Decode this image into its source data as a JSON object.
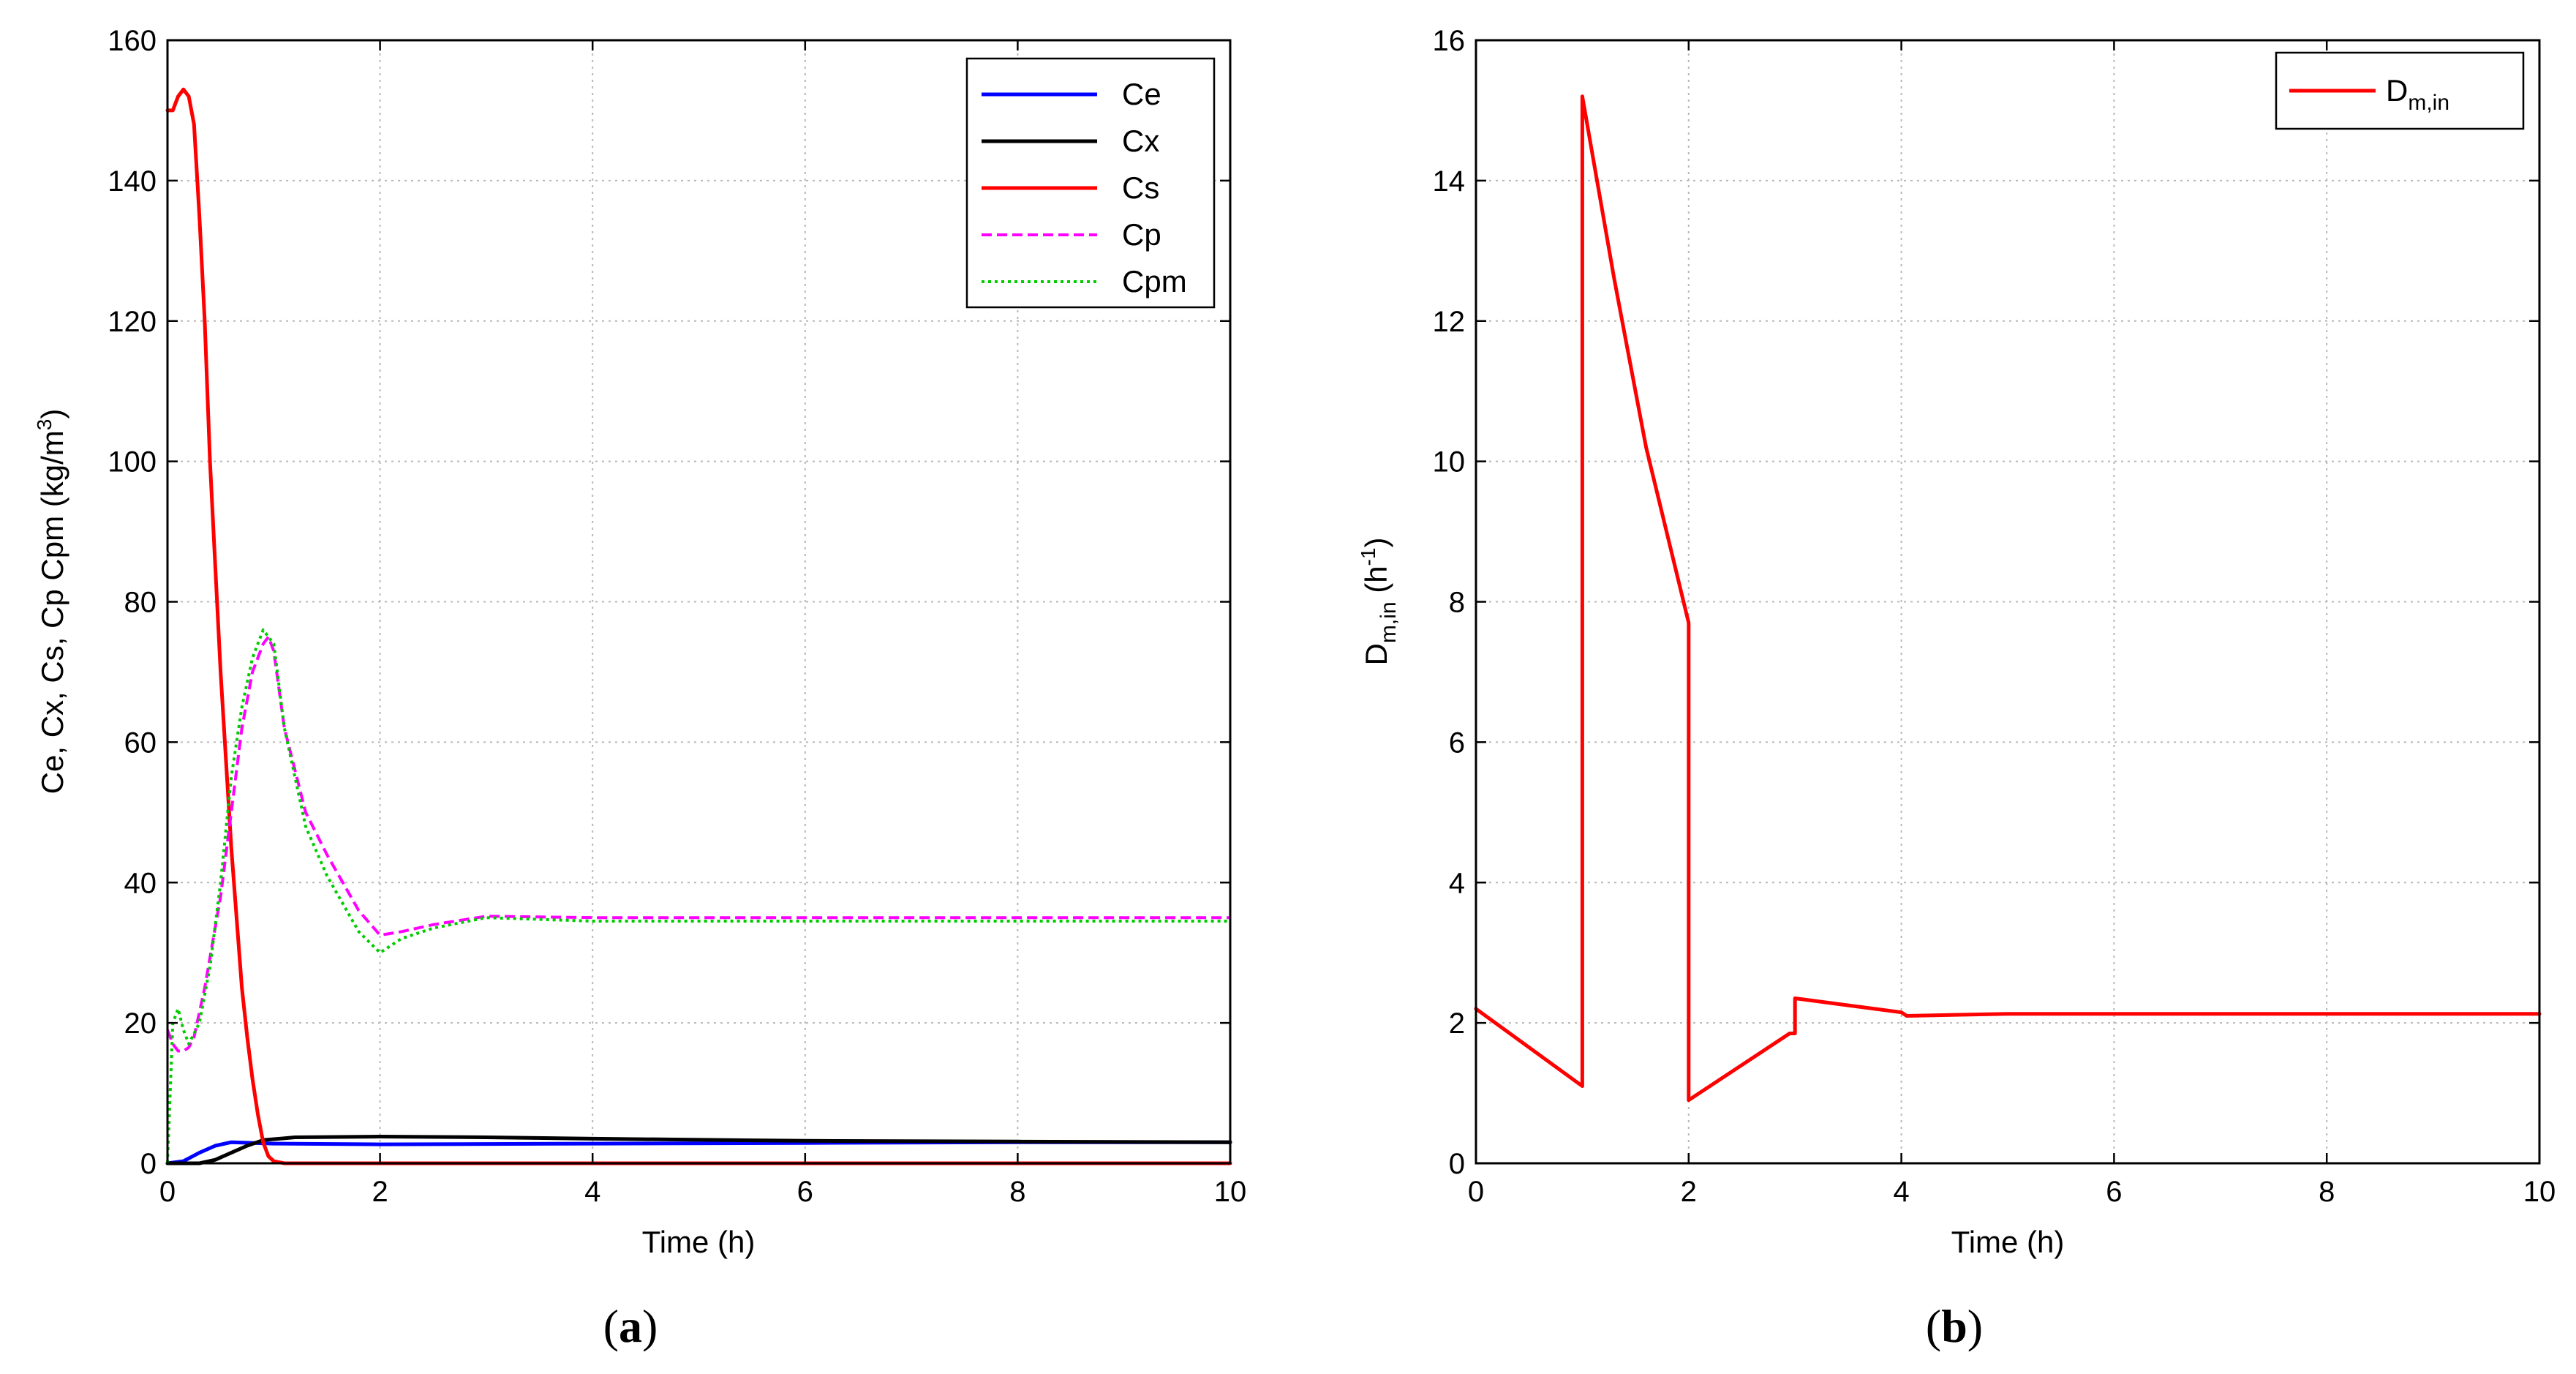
{
  "chart_data": [
    {
      "type": "line",
      "caption": {
        "open": "(",
        "letter": "a",
        "close": ")"
      },
      "xlabel": "Time (h)",
      "ylabel": "Ce, Cx, Cs, Cp Cpm (kg/m",
      "ylabel_sup": "3",
      "ylabel_close": ")",
      "xlim": [
        0,
        10
      ],
      "ylim": [
        0,
        160
      ],
      "xticks": [
        0,
        2,
        4,
        6,
        8,
        10
      ],
      "yticks": [
        0,
        20,
        40,
        60,
        80,
        100,
        120,
        140,
        160
      ],
      "xtick_labels": [
        "0",
        "2",
        "4",
        "6",
        "8",
        "10"
      ],
      "ytick_labels": [
        "0",
        "20",
        "40",
        "60",
        "80",
        "100",
        "120",
        "140",
        "160"
      ],
      "grid": true,
      "legend_position": "top-right",
      "series": [
        {
          "name": "Ce",
          "color": "#0000ff",
          "style": "solid",
          "x": [
            0,
            0.15,
            0.3,
            0.45,
            0.6,
            1.0,
            2.0,
            4.0,
            6.0,
            8.0,
            10.0
          ],
          "y": [
            0,
            0.3,
            1.5,
            2.5,
            3.0,
            2.8,
            2.7,
            2.8,
            2.9,
            3.0,
            3.0
          ]
        },
        {
          "name": "Cx",
          "color": "#000000",
          "style": "solid",
          "x": [
            0,
            0.3,
            0.45,
            0.6,
            0.75,
            0.9,
            1.2,
            2.0,
            3.0,
            4.0,
            6.0,
            8.0,
            10.0
          ],
          "y": [
            0,
            0,
            0.5,
            1.5,
            2.5,
            3.3,
            3.7,
            3.8,
            3.7,
            3.5,
            3.2,
            3.1,
            3.0
          ]
        },
        {
          "name": "Cs",
          "color": "#ff0000",
          "style": "solid",
          "x": [
            0,
            0.05,
            0.1,
            0.15,
            0.2,
            0.25,
            0.3,
            0.35,
            0.4,
            0.5,
            0.6,
            0.7,
            0.75,
            0.8,
            0.85,
            0.9,
            0.95,
            1.0,
            1.1,
            2.0,
            4.0,
            6.0,
            8.0,
            10.0
          ],
          "y": [
            150,
            150,
            152,
            153,
            152,
            148,
            135,
            120,
            100,
            70,
            45,
            25,
            18,
            12,
            7,
            3,
            1,
            0.3,
            0,
            0,
            0,
            0,
            0,
            0
          ]
        },
        {
          "name": "Cp",
          "color": "#ff00ff",
          "style": "dashed",
          "x": [
            0,
            0.05,
            0.1,
            0.15,
            0.2,
            0.25,
            0.35,
            0.5,
            0.6,
            0.7,
            0.8,
            0.9,
            0.95,
            1.0,
            1.1,
            1.3,
            1.5,
            1.8,
            2.0,
            2.2,
            2.5,
            3.0,
            3.5,
            4.0,
            6.0,
            8.0,
            10.0
          ],
          "y": [
            19,
            17,
            16,
            16,
            16.5,
            18,
            25,
            38,
            50,
            62,
            70,
            74,
            75,
            73,
            62,
            50,
            44,
            36,
            32.5,
            33,
            34,
            35.2,
            35.1,
            35,
            35,
            35,
            35
          ]
        },
        {
          "name": "Cpm",
          "color": "#00cc00",
          "style": "dotted",
          "x": [
            0,
            0.05,
            0.1,
            0.15,
            0.2,
            0.3,
            0.4,
            0.5,
            0.6,
            0.7,
            0.8,
            0.9,
            1.0,
            1.1,
            1.3,
            1.5,
            1.8,
            2.0,
            2.2,
            2.5,
            3.0,
            4.0,
            6.0,
            8.0,
            10.0
          ],
          "y": [
            0,
            20,
            22,
            19,
            17,
            20,
            28,
            40,
            55,
            65,
            72,
            76,
            74,
            62,
            48,
            41,
            33,
            30,
            32,
            33.5,
            35,
            34.5,
            34.5,
            34.5,
            34.5
          ]
        }
      ]
    },
    {
      "type": "line",
      "caption": {
        "open": "(",
        "letter": "b",
        "close": ")"
      },
      "xlabel": "Time (h)",
      "ylabel": "D",
      "ylabel_sub": "m,in",
      "ylabel_mid": " (h",
      "ylabel_sup": "-1",
      "ylabel_close": ")",
      "xlim": [
        0,
        10
      ],
      "ylim": [
        0,
        16
      ],
      "xticks": [
        0,
        2,
        4,
        6,
        8,
        10
      ],
      "yticks": [
        0,
        2,
        4,
        6,
        8,
        10,
        12,
        14,
        16
      ],
      "xtick_labels": [
        "0",
        "2",
        "4",
        "6",
        "8",
        "10"
      ],
      "ytick_labels": [
        "0",
        "2",
        "4",
        "6",
        "8",
        "10",
        "12",
        "14",
        "16"
      ],
      "grid": true,
      "legend_position": "top-right",
      "series": [
        {
          "name": "D",
          "name_sub": "m,in",
          "color": "#ff0000",
          "style": "solid",
          "x": [
            0,
            1.0,
            1.0,
            1.0,
            1.3,
            1.6,
            2.0,
            2.0,
            2.0,
            2.5,
            2.95,
            3.0,
            3.0,
            3.5,
            4.0,
            4.05,
            5.0,
            6.0,
            8.0,
            10.0
          ],
          "y": [
            2.2,
            1.1,
            8.0,
            15.2,
            12.6,
            10.2,
            7.7,
            7.6,
            0.9,
            1.4,
            1.85,
            1.85,
            2.35,
            2.25,
            2.15,
            2.1,
            2.13,
            2.13,
            2.13,
            2.13
          ]
        }
      ]
    }
  ]
}
